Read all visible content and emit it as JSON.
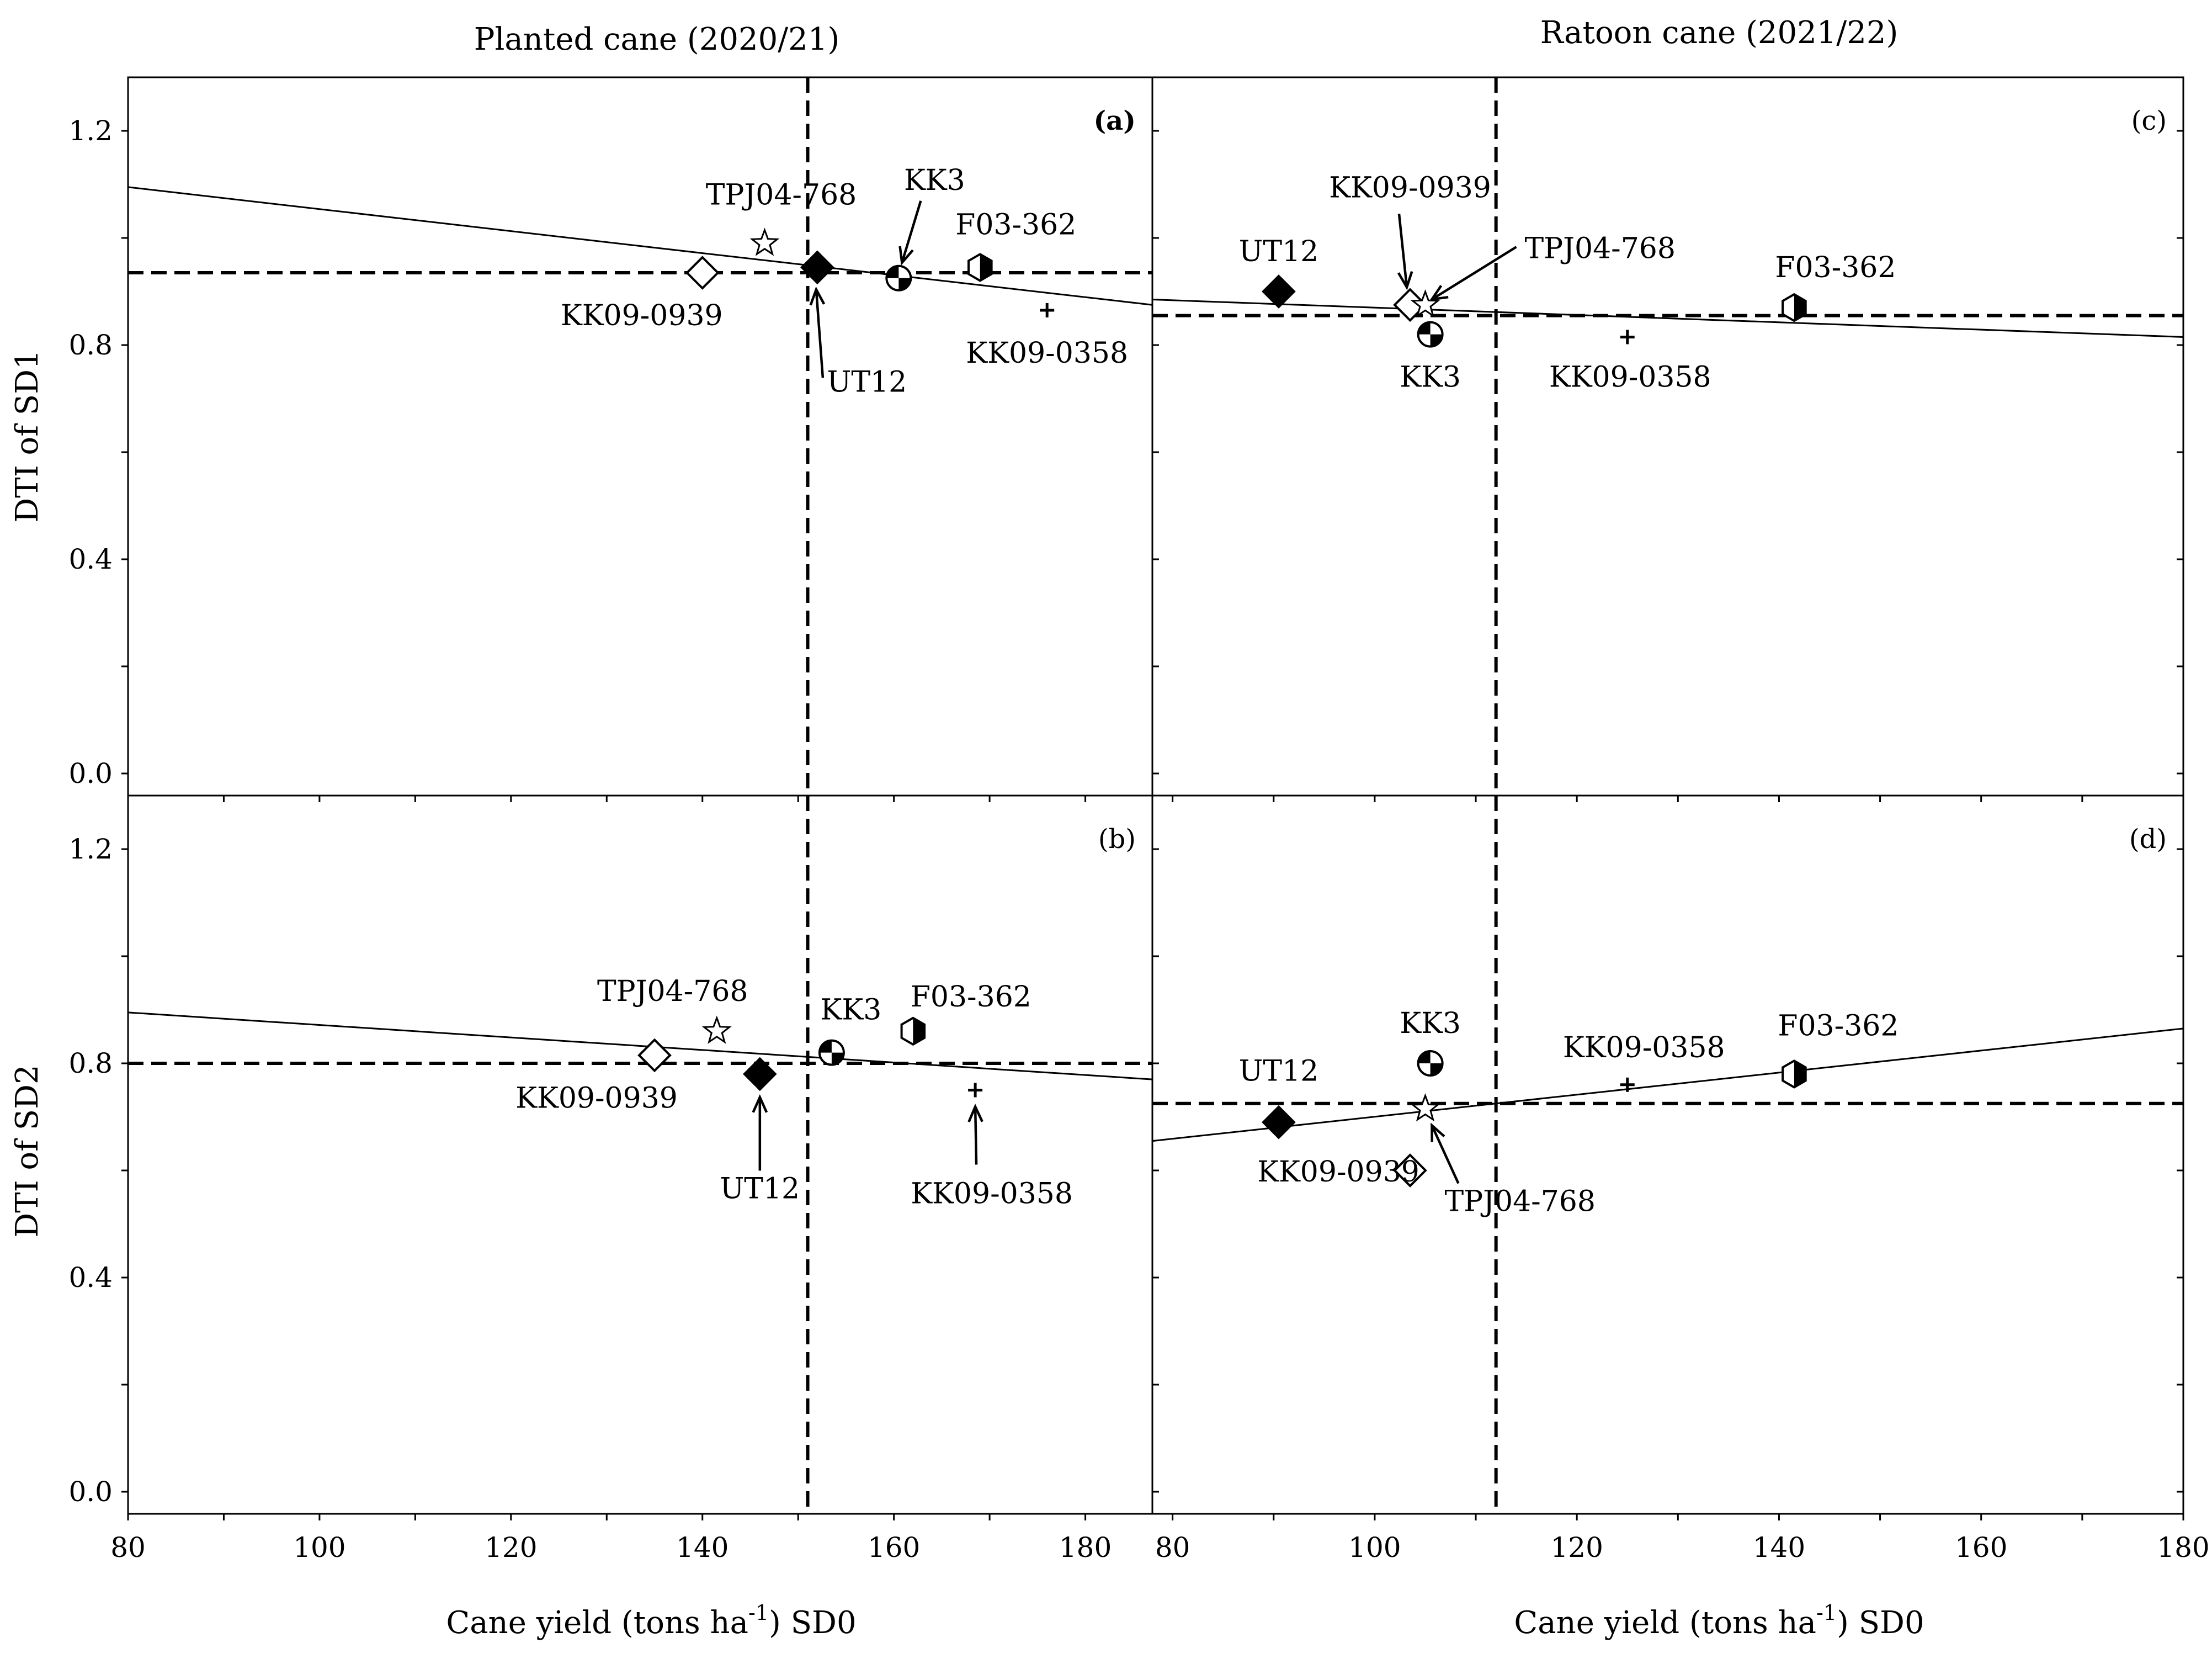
{
  "figure": {
    "title_left": "Planted cane (2020/21)",
    "title_right": "Ratoon cane (2021/22)",
    "y_label_top": "DTI of SD1",
    "y_label_bottom": "DTI of SD2",
    "x_label_main": "Cane yield (tons ha",
    "x_label_sup": "-1",
    "x_label_tail": ") SD0"
  },
  "chart_data": [
    {
      "id": "a",
      "tag": "(a)",
      "tag_bold": true,
      "type": "scatter",
      "title": "Planted cane (2020/21)",
      "xlabel": "Cane yield (tons ha-1) SD0",
      "ylabel": "DTI of SD1",
      "xlim": [
        80,
        187
      ],
      "ylim": [
        0,
        1.3
      ],
      "xticks": [],
      "yticks": [
        "0.0",
        "0.4",
        "0.8",
        "1.2"
      ],
      "mean_x": 151,
      "mean_y": 0.935,
      "regression": {
        "x": [
          80,
          187
        ],
        "y": [
          1.095,
          0.875
        ]
      },
      "points": [
        {
          "name": "TPJ04-768",
          "x": 146.5,
          "y": 0.99,
          "marker": "star-open"
        },
        {
          "name": "KK09-0939",
          "x": 140,
          "y": 0.935,
          "marker": "diamond-open"
        },
        {
          "name": "UT12",
          "x": 152,
          "y": 0.945,
          "marker": "diamond-filled"
        },
        {
          "name": "KK3",
          "x": 160.5,
          "y": 0.925,
          "marker": "circle-quartered"
        },
        {
          "name": "F03-362",
          "x": 169,
          "y": 0.945,
          "marker": "hexagon-half"
        },
        {
          "name": "KK09-0358",
          "x": 176,
          "y": 0.865,
          "marker": "plus"
        }
      ]
    },
    {
      "id": "b",
      "tag": "(b)",
      "tag_bold": false,
      "type": "scatter",
      "title": "",
      "xlabel": "Cane yield (tons ha-1) SD0",
      "ylabel": "DTI of SD2",
      "xlim": [
        80,
        187
      ],
      "ylim": [
        0,
        1.3
      ],
      "xticks": [
        "80",
        "100",
        "120",
        "140",
        "160",
        "180"
      ],
      "yticks": [
        "0.0",
        "0.4",
        "0.8",
        "1.2"
      ],
      "mean_x": 151,
      "mean_y": 0.8,
      "regression": {
        "x": [
          80,
          187
        ],
        "y": [
          0.895,
          0.77
        ]
      },
      "points": [
        {
          "name": "TPJ04-768",
          "x": 141.5,
          "y": 0.86,
          "marker": "star-open"
        },
        {
          "name": "KK09-0939",
          "x": 135,
          "y": 0.815,
          "marker": "diamond-open"
        },
        {
          "name": "UT12",
          "x": 146,
          "y": 0.78,
          "marker": "diamond-filled"
        },
        {
          "name": "KK3",
          "x": 153.5,
          "y": 0.82,
          "marker": "circle-quartered"
        },
        {
          "name": "F03-362",
          "x": 162,
          "y": 0.86,
          "marker": "hexagon-half"
        },
        {
          "name": "KK09-0358",
          "x": 168.5,
          "y": 0.75,
          "marker": "plus"
        }
      ]
    },
    {
      "id": "c",
      "tag": "(c)",
      "tag_bold": false,
      "type": "scatter",
      "title": "Ratoon cane (2021/22)",
      "xlabel": "Cane yield (tons ha-1) SD0",
      "ylabel": "DTI of SD1",
      "xlim": [
        78,
        180
      ],
      "ylim": [
        0,
        1.3
      ],
      "xticks": [],
      "yticks": [],
      "mean_x": 112,
      "mean_y": 0.855,
      "regression": {
        "x": [
          78,
          180
        ],
        "y": [
          0.885,
          0.815
        ]
      },
      "points": [
        {
          "name": "UT12",
          "x": 90.5,
          "y": 0.9,
          "marker": "diamond-filled"
        },
        {
          "name": "KK09-0939",
          "x": 103.5,
          "y": 0.875,
          "marker": "diamond-open"
        },
        {
          "name": "TPJ04-768",
          "x": 105,
          "y": 0.875,
          "marker": "star-open"
        },
        {
          "name": "KK3",
          "x": 105.5,
          "y": 0.82,
          "marker": "circle-quartered"
        },
        {
          "name": "KK09-0358",
          "x": 125,
          "y": 0.815,
          "marker": "plus"
        },
        {
          "name": "F03-362",
          "x": 141.5,
          "y": 0.87,
          "marker": "hexagon-half"
        }
      ]
    },
    {
      "id": "d",
      "tag": "(d)",
      "tag_bold": false,
      "type": "scatter",
      "title": "",
      "xlabel": "Cane yield (tons ha-1) SD0",
      "ylabel": "DTI of SD2",
      "xlim": [
        78,
        180
      ],
      "ylim": [
        0,
        1.3
      ],
      "xticks": [
        "80",
        "100",
        "120",
        "140",
        "160",
        "180"
      ],
      "yticks": [],
      "mean_x": 112,
      "mean_y": 0.725,
      "regression": {
        "x": [
          78,
          180
        ],
        "y": [
          0.655,
          0.865
        ]
      },
      "points": [
        {
          "name": "UT12",
          "x": 90.5,
          "y": 0.69,
          "marker": "diamond-filled"
        },
        {
          "name": "KK09-0939",
          "x": 103.5,
          "y": 0.6,
          "marker": "diamond-open"
        },
        {
          "name": "TPJ04-768",
          "x": 105,
          "y": 0.715,
          "marker": "star-open"
        },
        {
          "name": "KK3",
          "x": 105.5,
          "y": 0.8,
          "marker": "circle-quartered"
        },
        {
          "name": "KK09-0358",
          "x": 125,
          "y": 0.76,
          "marker": "plus"
        },
        {
          "name": "F03-362",
          "x": 141.5,
          "y": 0.78,
          "marker": "hexagon-half"
        }
      ]
    }
  ]
}
